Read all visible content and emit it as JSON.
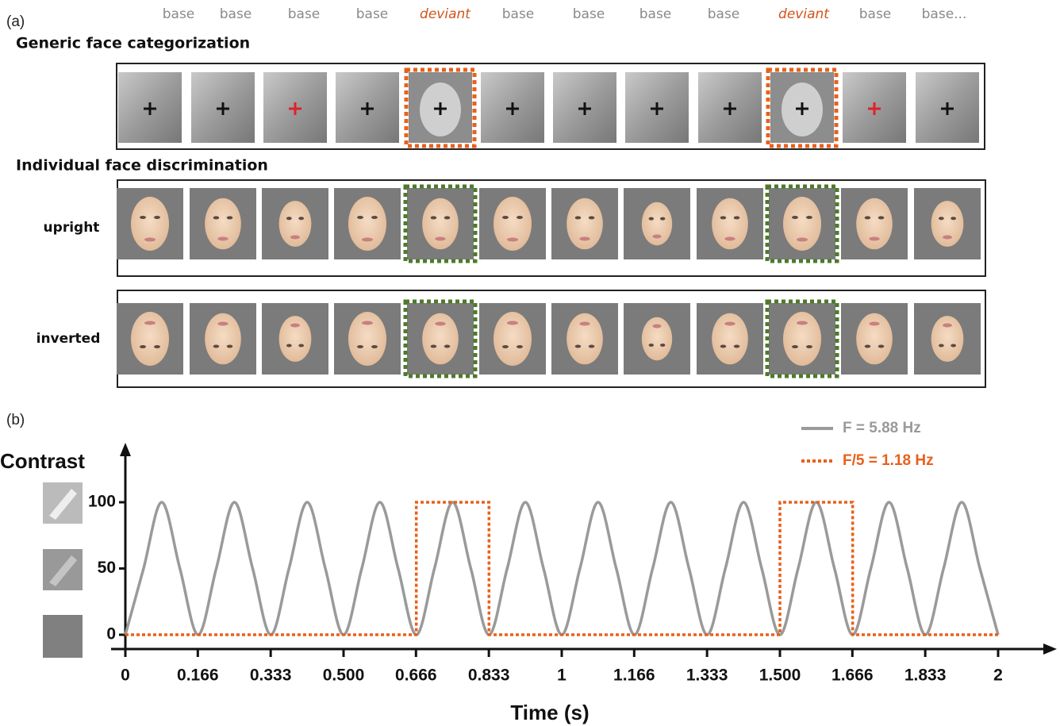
{
  "panel_a": {
    "label": "(a)",
    "sequence_labels": [
      "base",
      "base",
      "base",
      "base",
      "deviant",
      "base",
      "base",
      "base",
      "base",
      "deviant",
      "base",
      "base..."
    ],
    "generic_title": "Generic face categorization",
    "individual_title": "Individual face discrimination",
    "rows": [
      "upright",
      "inverted"
    ]
  },
  "panel_b_label": "(b)",
  "chart_data": {
    "type": "line",
    "y_label": "Contrast",
    "x_label": "Time (s)",
    "x": [
      0,
      0.0417,
      0.0833,
      0.125,
      0.1667,
      0.2083,
      0.25,
      0.2917,
      0.3333,
      0.375,
      0.4167,
      0.4583,
      0.5,
      0.5417,
      0.5833,
      0.625,
      0.6667,
      0.7083,
      0.75,
      0.7917,
      0.8333,
      0.875,
      0.9167,
      0.9583,
      1,
      1.0417,
      1.0833,
      1.125,
      1.1667,
      1.2083,
      1.25,
      1.2917,
      1.3333,
      1.375,
      1.4167,
      1.4583,
      1.5,
      1.5417,
      1.5833,
      1.625,
      1.6667,
      1.7083,
      1.75,
      1.7917,
      1.8333,
      1.875,
      1.9167,
      1.9583,
      2
    ],
    "series": [
      {
        "name": "F = 5.88 Hz",
        "color": "#9a9a9a",
        "smooth": true,
        "dash": "solid",
        "values": [
          0,
          50,
          100,
          50,
          0,
          50,
          100,
          50,
          0,
          50,
          100,
          50,
          0,
          50,
          100,
          50,
          0,
          50,
          100,
          50,
          0,
          50,
          100,
          50,
          0,
          50,
          100,
          50,
          0,
          50,
          100,
          50,
          0,
          50,
          100,
          50,
          0,
          50,
          100,
          50,
          0,
          50,
          100,
          50,
          0,
          50,
          100,
          50,
          0
        ]
      },
      {
        "name": "F/5 = 1.18 Hz",
        "color": "#e8601c",
        "smooth": false,
        "dash": "dotted",
        "x": [
          0,
          0.6667,
          0.6667,
          0.8333,
          0.8333,
          1.5,
          1.5,
          1.6667,
          1.6667,
          2
        ],
        "values": [
          0,
          0,
          100,
          100,
          0,
          0,
          100,
          100,
          0,
          0
        ]
      }
    ],
    "xlim": [
      0,
      2
    ],
    "ylim": [
      0,
      100
    ],
    "xticks": [
      0,
      0.166,
      0.333,
      {
        "value": 0.5,
        "label": "0.500"
      },
      0.666,
      0.833,
      1,
      1.166,
      1.333,
      {
        "value": 1.5,
        "label": "1.500"
      },
      1.666,
      1.833,
      2
    ],
    "yticks": [
      0,
      50,
      100
    ]
  }
}
